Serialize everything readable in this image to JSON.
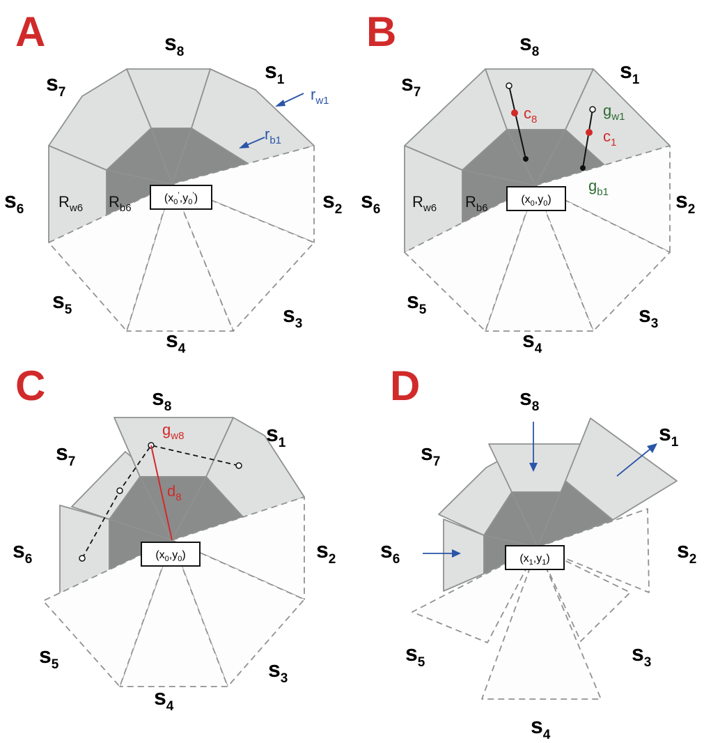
{
  "colors": {
    "panel_letter": "#d12a2a",
    "blue_annotation": "#2a55a8",
    "red_annotation": "#d12a2a",
    "green_annotation": "#2e6b33",
    "light_region": "#dfe1e0",
    "dark_region": "#8a8c8b",
    "empty_region": "#fdfdfd"
  },
  "panels": [
    {
      "letter": "A",
      "sectors": [
        {
          "main": "s",
          "sub": "1"
        },
        {
          "main": "s",
          "sub": "2"
        },
        {
          "main": "s",
          "sub": "3"
        },
        {
          "main": "s",
          "sub": "4"
        },
        {
          "main": "s",
          "sub": "5"
        },
        {
          "main": "s",
          "sub": "6"
        },
        {
          "main": "s",
          "sub": "7"
        },
        {
          "main": "s",
          "sub": "8"
        }
      ],
      "center": {
        "open": "(x",
        "x_sub": "0",
        "x_prime": "’",
        "mid": ",y",
        "y_sub": "0",
        "y_prime": "’",
        "close": ")"
      },
      "labels": [
        {
          "id": "rw1",
          "main": "r",
          "sub": "w1"
        },
        {
          "id": "rb1",
          "main": "r",
          "sub": "b1"
        },
        {
          "id": "Rw6",
          "main": "R",
          "sub": "w6"
        },
        {
          "id": "Rb6",
          "main": "R",
          "sub": "b6"
        }
      ]
    },
    {
      "letter": "B",
      "sectors": [
        {
          "main": "s",
          "sub": "1"
        },
        {
          "main": "s",
          "sub": "2"
        },
        {
          "main": "s",
          "sub": "3"
        },
        {
          "main": "s",
          "sub": "4"
        },
        {
          "main": "s",
          "sub": "5"
        },
        {
          "main": "s",
          "sub": "6"
        },
        {
          "main": "s",
          "sub": "7"
        },
        {
          "main": "s",
          "sub": "8"
        }
      ],
      "center": {
        "open": "(x",
        "x_sub": "0",
        "mid": ",y",
        "y_sub": "0",
        "close": ")"
      },
      "labels": [
        {
          "id": "c8",
          "main": "c",
          "sub": "8"
        },
        {
          "id": "c1",
          "main": "c",
          "sub": "1"
        },
        {
          "id": "gw1",
          "main": "g",
          "sub": "w1"
        },
        {
          "id": "gb1",
          "main": "g",
          "sub": "b1"
        },
        {
          "id": "Rw6",
          "main": "R",
          "sub": "w6"
        },
        {
          "id": "Rb6",
          "main": "R",
          "sub": "b6"
        }
      ]
    },
    {
      "letter": "C",
      "sectors": [
        {
          "main": "s",
          "sub": "1"
        },
        {
          "main": "s",
          "sub": "2"
        },
        {
          "main": "s",
          "sub": "3"
        },
        {
          "main": "s",
          "sub": "4"
        },
        {
          "main": "s",
          "sub": "5"
        },
        {
          "main": "s",
          "sub": "6"
        },
        {
          "main": "s",
          "sub": "7"
        },
        {
          "main": "s",
          "sub": "8"
        }
      ],
      "center": {
        "open": "(x",
        "x_sub": "0",
        "mid": ",y",
        "y_sub": "0",
        "close": ")"
      },
      "labels": [
        {
          "id": "gw8",
          "main": "g",
          "sub": "w8"
        },
        {
          "id": "d8",
          "main": "d",
          "sub": "8"
        }
      ]
    },
    {
      "letter": "D",
      "sectors": [
        {
          "main": "s",
          "sub": "1"
        },
        {
          "main": "s",
          "sub": "2"
        },
        {
          "main": "s",
          "sub": "3"
        },
        {
          "main": "s",
          "sub": "4"
        },
        {
          "main": "s",
          "sub": "5"
        },
        {
          "main": "s",
          "sub": "6"
        },
        {
          "main": "s",
          "sub": "7"
        },
        {
          "main": "s",
          "sub": "8"
        }
      ],
      "center": {
        "open": "(x",
        "x_sub": "1",
        "mid": ",y",
        "y_sub": "1",
        "close": ")"
      },
      "labels": []
    }
  ]
}
